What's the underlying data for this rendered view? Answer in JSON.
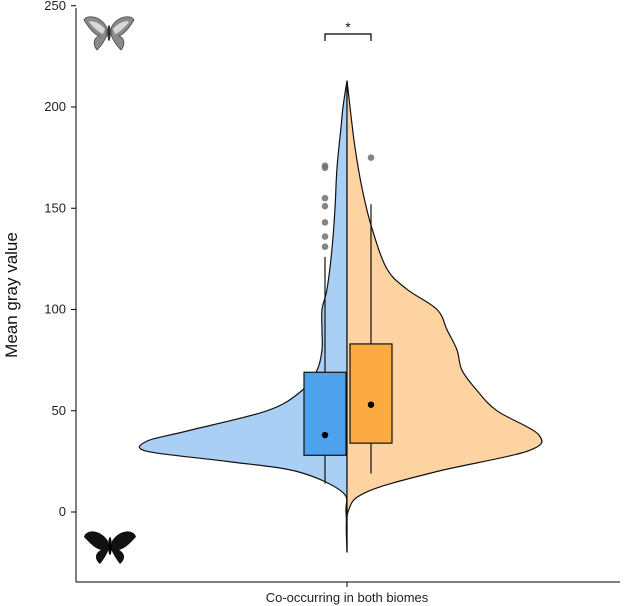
{
  "chart_data": {
    "type": "split-violin-boxplot",
    "ylabel": "Mean gray value",
    "xlabel": "",
    "categories": [
      "Co-occurring in both biomes"
    ],
    "ylim": [
      -30,
      250
    ],
    "yticks": [
      0,
      50,
      100,
      150,
      200,
      250
    ],
    "grid": false,
    "significance": {
      "label": "*",
      "between": [
        "left",
        "right"
      ]
    },
    "icons": [
      "light-butterfly-icon",
      "dark-butterfly-icon"
    ],
    "series": [
      {
        "side": "left",
        "color": "#a9cff5",
        "box_color": "#4ea1ec",
        "box": {
          "q1": 28,
          "median": 38,
          "q3": 69,
          "whisker_low": 14,
          "whisker_high": 126
        },
        "mean_point": 38,
        "outliers": [
          131,
          136,
          143,
          151,
          155,
          170,
          171
        ],
        "density": [
          [
            -20,
            0
          ],
          [
            0,
            1
          ],
          [
            10,
            5
          ],
          [
            20,
            50
          ],
          [
            25,
            120
          ],
          [
            30,
            200
          ],
          [
            35,
            200
          ],
          [
            40,
            160
          ],
          [
            50,
            80
          ],
          [
            60,
            45
          ],
          [
            70,
            30
          ],
          [
            80,
            25
          ],
          [
            90,
            25
          ],
          [
            100,
            25
          ],
          [
            110,
            20
          ],
          [
            130,
            15
          ],
          [
            150,
            12
          ],
          [
            170,
            10
          ],
          [
            190,
            6
          ],
          [
            200,
            4
          ],
          [
            213,
            0
          ]
        ]
      },
      {
        "side": "right",
        "color": "#fdd3a1",
        "box_color": "#fbab42",
        "box": {
          "q1": 34,
          "median": 53,
          "q3": 83,
          "whisker_low": 19,
          "whisker_high": 152
        },
        "mean_point": 53,
        "outliers": [
          175
        ],
        "density": [
          [
            -20,
            0
          ],
          [
            0,
            1
          ],
          [
            10,
            20
          ],
          [
            20,
            90
          ],
          [
            30,
            180
          ],
          [
            38,
            192
          ],
          [
            50,
            150
          ],
          [
            60,
            130
          ],
          [
            70,
            115
          ],
          [
            80,
            110
          ],
          [
            90,
            100
          ],
          [
            100,
            90
          ],
          [
            110,
            60
          ],
          [
            120,
            40
          ],
          [
            140,
            25
          ],
          [
            160,
            15
          ],
          [
            180,
            8
          ],
          [
            200,
            3
          ],
          [
            213,
            0
          ]
        ]
      }
    ]
  }
}
